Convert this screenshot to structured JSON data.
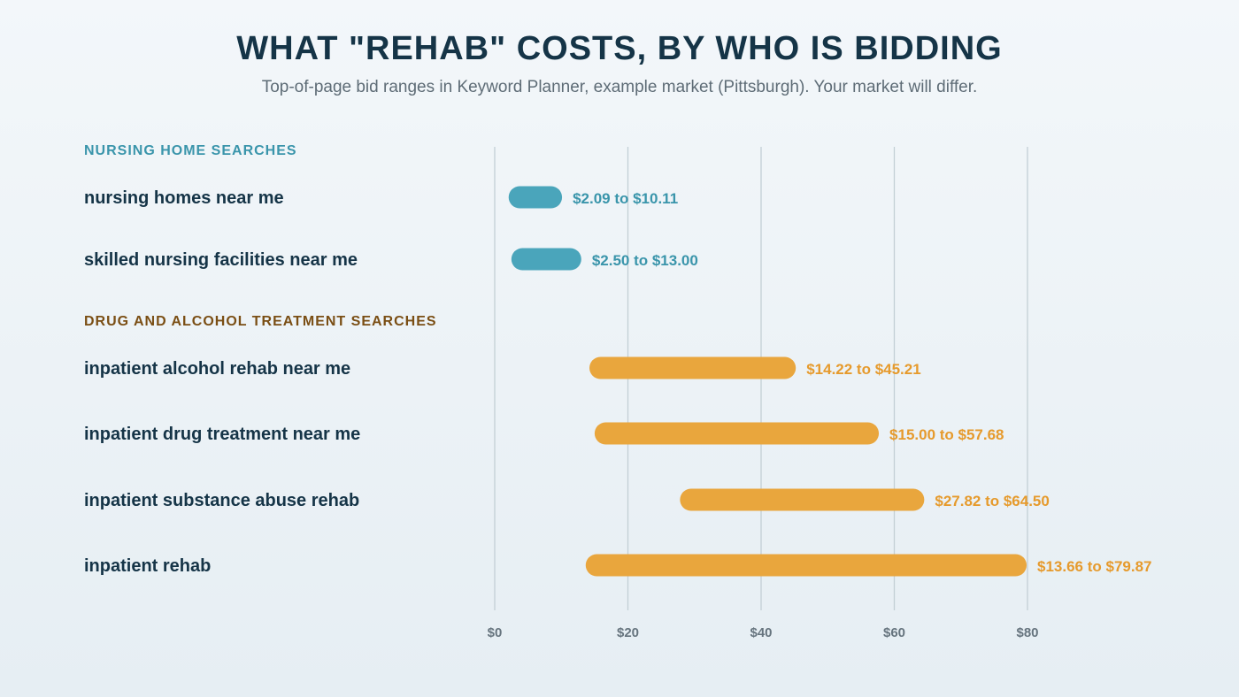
{
  "page": {
    "title": "WHAT \"REHAB\" COSTS, BY WHO IS BIDDING",
    "subtitle": "Top-of-page bid ranges in Keyword Planner, example market (Pittsburgh). Your market will differ."
  },
  "colors": {
    "nursing": "#4aa5bb",
    "nursing_text": "#3a95ab",
    "drug": "#e9a63d",
    "drug_text": "#e69a2c",
    "drug_heading": "#7a4e14",
    "label": "#153447",
    "axis": "#66747e",
    "grid": "#c3cfd5"
  },
  "chart_data": {
    "type": "range-bar",
    "title": "WHAT \"REHAB\" COSTS, BY WHO IS BIDDING",
    "subtitle": "Top-of-page bid ranges in Keyword Planner, example market (Pittsburgh). Your market will differ.",
    "xlim": [
      0,
      80
    ],
    "x_ticks": [
      0,
      20,
      40,
      60,
      80
    ],
    "x_tick_labels": [
      "$0",
      "$20",
      "$40",
      "$60",
      "$80"
    ],
    "grid": true,
    "groups": [
      {
        "name": "NURSING HOME SEARCHES",
        "color_key": "nursing",
        "rows": [
          {
            "label": "nursing homes near me",
            "low": 2.09,
            "high": 10.11,
            "text": "$2.09 to $10.11"
          },
          {
            "label": "skilled nursing facilities near me",
            "low": 2.5,
            "high": 13.0,
            "text": "$2.50 to $13.00"
          }
        ]
      },
      {
        "name": "DRUG AND ALCOHOL TREATMENT SEARCHES",
        "color_key": "drug",
        "rows": [
          {
            "label": "inpatient alcohol rehab near me",
            "low": 14.22,
            "high": 45.21,
            "text": "$14.22 to $45.21"
          },
          {
            "label": "inpatient drug treatment near me",
            "low": 15.0,
            "high": 57.68,
            "text": "$15.00 to $57.68"
          },
          {
            "label": "inpatient substance abuse rehab",
            "low": 27.82,
            "high": 64.5,
            "text": "$27.82 to $64.50"
          },
          {
            "label": "inpatient rehab",
            "low": 13.66,
            "high": 79.87,
            "text": "$13.66 to $79.87"
          }
        ]
      }
    ]
  }
}
